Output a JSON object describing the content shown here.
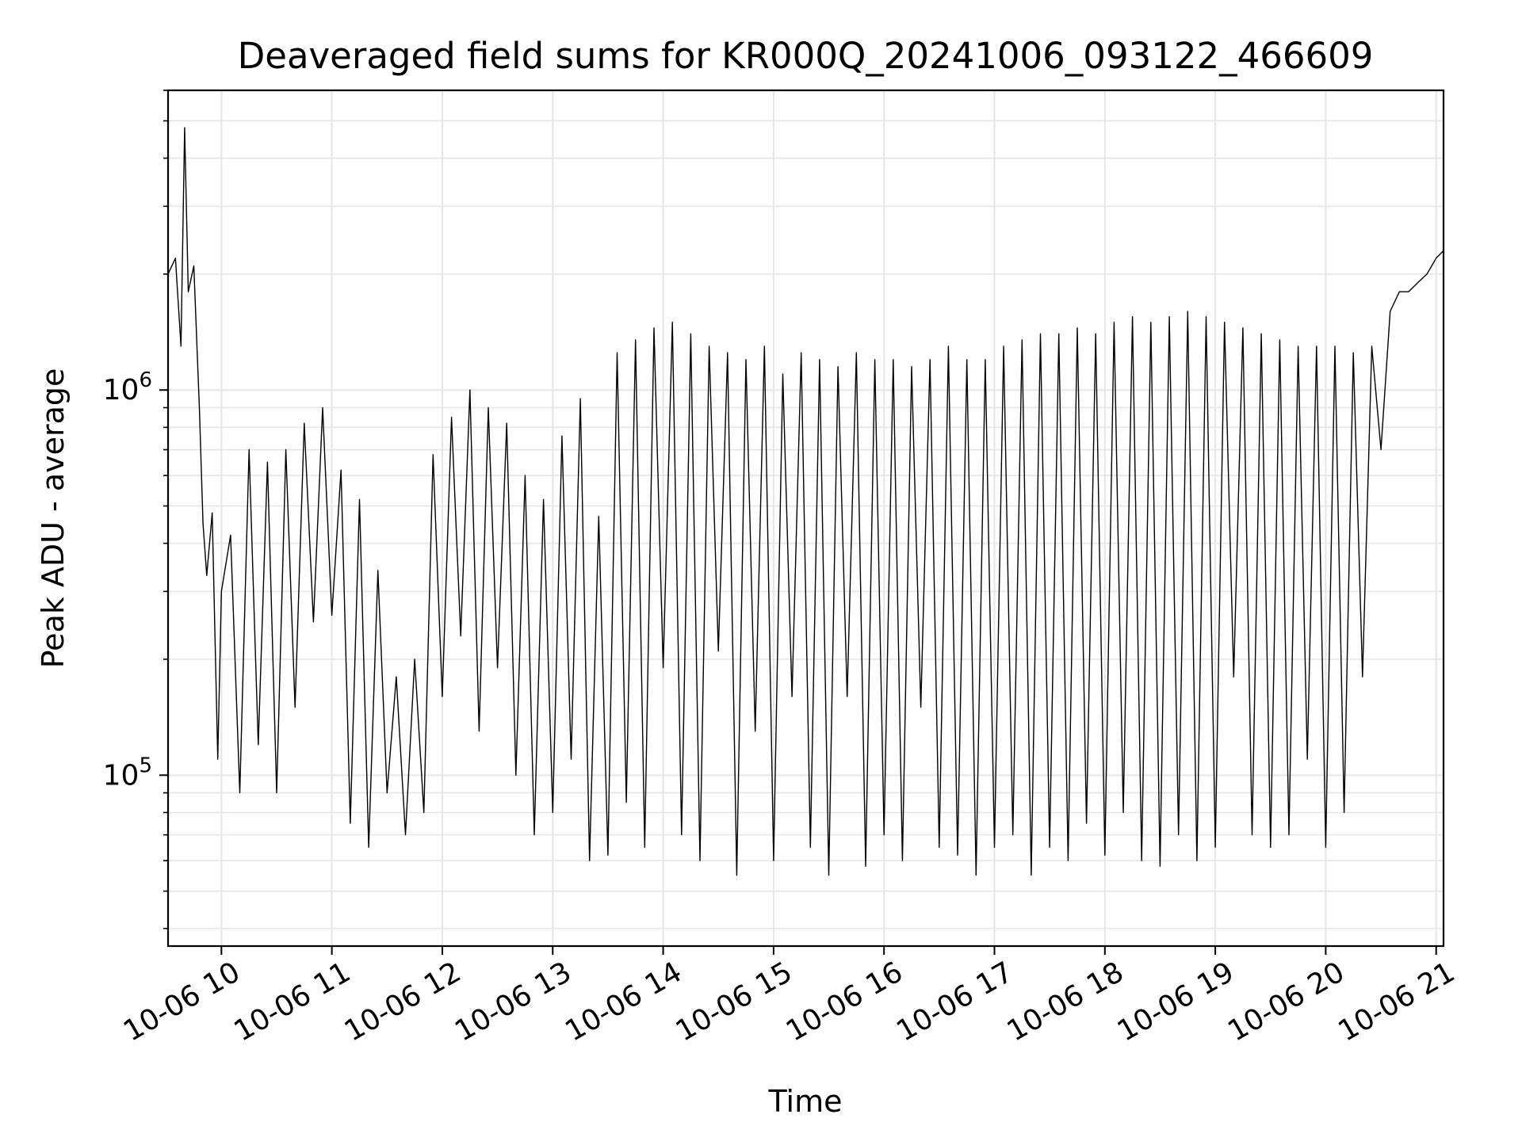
{
  "chart_data": {
    "type": "line",
    "title": "Deaveraged field sums for KR000Q_20241006_093122_466609",
    "xlabel": "Time",
    "ylabel": "Peak ADU - average",
    "y_scale": "log",
    "ylim": [
      36000,
      6000000
    ],
    "x_range": [
      "2024-10-06 09:31",
      "2024-10-06 21:04"
    ],
    "grid": true,
    "line_color": "#000000",
    "x_ticks": [
      {
        "hour": 10,
        "label": "10-06 10"
      },
      {
        "hour": 11,
        "label": "10-06 11"
      },
      {
        "hour": 12,
        "label": "10-06 12"
      },
      {
        "hour": 13,
        "label": "10-06 13"
      },
      {
        "hour": 14,
        "label": "10-06 14"
      },
      {
        "hour": 15,
        "label": "10-06 15"
      },
      {
        "hour": 16,
        "label": "10-06 16"
      },
      {
        "hour": 17,
        "label": "10-06 17"
      },
      {
        "hour": 18,
        "label": "10-06 18"
      },
      {
        "hour": 19,
        "label": "10-06 19"
      },
      {
        "hour": 20,
        "label": "10-06 20"
      },
      {
        "hour": 21,
        "label": "10-06 21"
      }
    ],
    "y_ticks": [
      {
        "value": 100000,
        "base": "10",
        "exp": "5"
      },
      {
        "value": 1000000,
        "base": "10",
        "exp": "6"
      }
    ],
    "series": [
      {
        "x": [
          "2024-10-06 09:31",
          "2024-10-06 09:35",
          "2024-10-06 09:38",
          "2024-10-06 09:40",
          "2024-10-06 09:42",
          "2024-10-06 09:45",
          "2024-10-06 09:48",
          "2024-10-06 09:50",
          "2024-10-06 09:52",
          "2024-10-06 09:55",
          "2024-10-06 09:58",
          "2024-10-06 10:00",
          "2024-10-06 10:05",
          "2024-10-06 10:10",
          "2024-10-06 10:15",
          "2024-10-06 10:20",
          "2024-10-06 10:25",
          "2024-10-06 10:30",
          "2024-10-06 10:35",
          "2024-10-06 10:40",
          "2024-10-06 10:45",
          "2024-10-06 10:50",
          "2024-10-06 10:55",
          "2024-10-06 11:00",
          "2024-10-06 11:05",
          "2024-10-06 11:10",
          "2024-10-06 11:15",
          "2024-10-06 11:20",
          "2024-10-06 11:25",
          "2024-10-06 11:30",
          "2024-10-06 11:35",
          "2024-10-06 11:40",
          "2024-10-06 11:45",
          "2024-10-06 11:50",
          "2024-10-06 11:55",
          "2024-10-06 12:00",
          "2024-10-06 12:05",
          "2024-10-06 12:10",
          "2024-10-06 12:15",
          "2024-10-06 12:20",
          "2024-10-06 12:25",
          "2024-10-06 12:30",
          "2024-10-06 12:35",
          "2024-10-06 12:40",
          "2024-10-06 12:45",
          "2024-10-06 12:50",
          "2024-10-06 12:55",
          "2024-10-06 13:00",
          "2024-10-06 13:05",
          "2024-10-06 13:10",
          "2024-10-06 13:15",
          "2024-10-06 13:20",
          "2024-10-06 13:25",
          "2024-10-06 13:30",
          "2024-10-06 13:35",
          "2024-10-06 13:40",
          "2024-10-06 13:45",
          "2024-10-06 13:50",
          "2024-10-06 13:55",
          "2024-10-06 14:00",
          "2024-10-06 14:05",
          "2024-10-06 14:10",
          "2024-10-06 14:15",
          "2024-10-06 14:20",
          "2024-10-06 14:25",
          "2024-10-06 14:30",
          "2024-10-06 14:35",
          "2024-10-06 14:40",
          "2024-10-06 14:45",
          "2024-10-06 14:50",
          "2024-10-06 14:55",
          "2024-10-06 15:00",
          "2024-10-06 15:05",
          "2024-10-06 15:10",
          "2024-10-06 15:15",
          "2024-10-06 15:20",
          "2024-10-06 15:25",
          "2024-10-06 15:30",
          "2024-10-06 15:35",
          "2024-10-06 15:40",
          "2024-10-06 15:45",
          "2024-10-06 15:50",
          "2024-10-06 15:55",
          "2024-10-06 16:00",
          "2024-10-06 16:05",
          "2024-10-06 16:10",
          "2024-10-06 16:15",
          "2024-10-06 16:20",
          "2024-10-06 16:25",
          "2024-10-06 16:30",
          "2024-10-06 16:35",
          "2024-10-06 16:40",
          "2024-10-06 16:45",
          "2024-10-06 16:50",
          "2024-10-06 16:55",
          "2024-10-06 17:00",
          "2024-10-06 17:05",
          "2024-10-06 17:10",
          "2024-10-06 17:15",
          "2024-10-06 17:20",
          "2024-10-06 17:25",
          "2024-10-06 17:30",
          "2024-10-06 17:35",
          "2024-10-06 17:40",
          "2024-10-06 17:45",
          "2024-10-06 17:50",
          "2024-10-06 17:55",
          "2024-10-06 18:00",
          "2024-10-06 18:05",
          "2024-10-06 18:10",
          "2024-10-06 18:15",
          "2024-10-06 18:20",
          "2024-10-06 18:25",
          "2024-10-06 18:30",
          "2024-10-06 18:35",
          "2024-10-06 18:40",
          "2024-10-06 18:45",
          "2024-10-06 18:50",
          "2024-10-06 18:55",
          "2024-10-06 19:00",
          "2024-10-06 19:05",
          "2024-10-06 19:10",
          "2024-10-06 19:15",
          "2024-10-06 19:20",
          "2024-10-06 19:25",
          "2024-10-06 19:30",
          "2024-10-06 19:35",
          "2024-10-06 19:40",
          "2024-10-06 19:45",
          "2024-10-06 19:50",
          "2024-10-06 19:55",
          "2024-10-06 20:00",
          "2024-10-06 20:05",
          "2024-10-06 20:10",
          "2024-10-06 20:15",
          "2024-10-06 20:20",
          "2024-10-06 20:25",
          "2024-10-06 20:30",
          "2024-10-06 20:35",
          "2024-10-06 20:40",
          "2024-10-06 20:45",
          "2024-10-06 20:50",
          "2024-10-06 20:55",
          "2024-10-06 21:00",
          "2024-10-06 21:04"
        ],
        "y": [
          2000000,
          2200000,
          1300000,
          4800000,
          1800000,
          2100000,
          900000,
          450000,
          330000,
          480000,
          110000,
          300000,
          420000,
          90000,
          700000,
          120000,
          650000,
          90000,
          700000,
          150000,
          820000,
          250000,
          900000,
          260000,
          620000,
          75000,
          520000,
          65000,
          340000,
          90000,
          180000,
          70000,
          200000,
          80000,
          680000,
          160000,
          850000,
          230000,
          1000000,
          130000,
          900000,
          190000,
          820000,
          100000,
          600000,
          70000,
          520000,
          80000,
          760000,
          110000,
          950000,
          60000,
          470000,
          62000,
          1250000,
          85000,
          1350000,
          65000,
          1450000,
          190000,
          1500000,
          70000,
          1400000,
          60000,
          1300000,
          210000,
          1250000,
          55000,
          1200000,
          130000,
          1300000,
          60000,
          1100000,
          160000,
          1250000,
          65000,
          1200000,
          55000,
          1150000,
          160000,
          1250000,
          58000,
          1200000,
          70000,
          1200000,
          60000,
          1150000,
          150000,
          1200000,
          65000,
          1300000,
          62000,
          1200000,
          55000,
          1200000,
          65000,
          1300000,
          70000,
          1350000,
          55000,
          1400000,
          65000,
          1400000,
          60000,
          1450000,
          75000,
          1400000,
          62000,
          1500000,
          80000,
          1550000,
          60000,
          1500000,
          58000,
          1550000,
          70000,
          1600000,
          60000,
          1550000,
          65000,
          1500000,
          180000,
          1450000,
          70000,
          1400000,
          65000,
          1350000,
          70000,
          1300000,
          110000,
          1300000,
          65000,
          1300000,
          80000,
          1250000,
          180000,
          1300000,
          700000,
          1600000,
          1800000,
          1800000,
          1900000,
          2000000,
          2200000,
          2300000
        ]
      }
    ]
  }
}
